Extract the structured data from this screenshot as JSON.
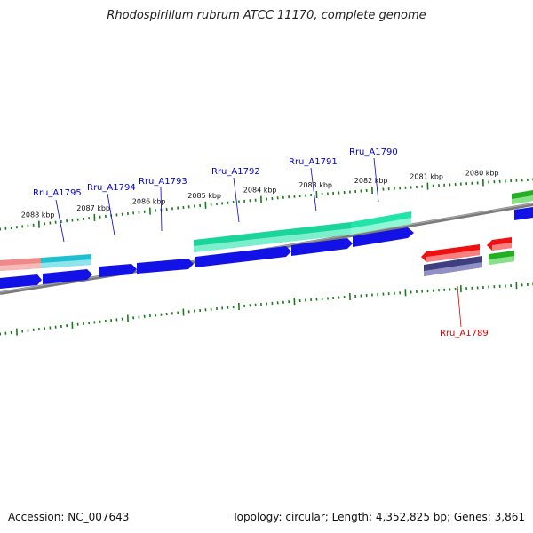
{
  "title": "Rhodospirillum rubrum ATCC 11170, complete genome",
  "footer": {
    "accession": "Accession: NC_007643",
    "topology": "Topology: circular; Length: 4,352,825 bp; Genes: 3,861"
  },
  "colors": {
    "backbone": "#888888",
    "tick": "#1a7a1a",
    "blue": "#1010e0",
    "teal": "#1fe0a8",
    "cyan": "#20c8d8",
    "pink": "#f09090",
    "red": "#ee1010",
    "navy": "#40407a",
    "green": "#20b020",
    "label_blue": "#0000cc",
    "label_red": "#dd0000"
  },
  "ticks": [
    "2088 kbp",
    "2087 kbp",
    "2086 kbp",
    "2085 kbp",
    "2084 kbp",
    "2083 kbp",
    "2082 kbp",
    "2081 kbp",
    "2080 kbp"
  ],
  "gene_labels": [
    {
      "name": "Rru_A1795",
      "color": "label_blue"
    },
    {
      "name": "Rru_A1794",
      "color": "label_blue"
    },
    {
      "name": "Rru_A1793",
      "color": "label_blue"
    },
    {
      "name": "Rru_A1792",
      "color": "label_blue"
    },
    {
      "name": "Rru_A1791",
      "color": "label_blue"
    },
    {
      "name": "Rru_A1790",
      "color": "label_blue"
    },
    {
      "name": "Rru_A1789",
      "color": "label_red"
    }
  ]
}
